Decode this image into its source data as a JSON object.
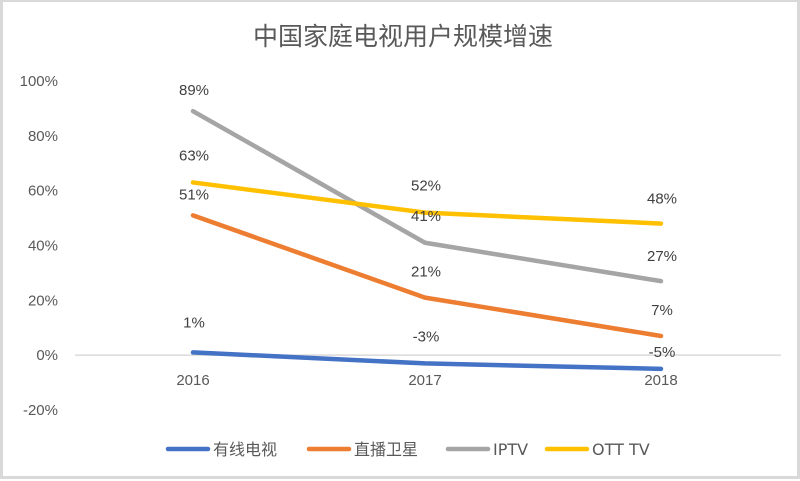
{
  "chart_data": {
    "type": "line",
    "title": "中国家庭电视用户规模增速",
    "xlabel": "",
    "ylabel": "",
    "categories": [
      "2016",
      "2017",
      "2018"
    ],
    "ylim": [
      -0.2,
      1.0
    ],
    "yticks": [
      {
        "value": 1.0,
        "label": "100%"
      },
      {
        "value": 0.8,
        "label": "80%"
      },
      {
        "value": 0.6,
        "label": "60%"
      },
      {
        "value": 0.4,
        "label": "40%"
      },
      {
        "value": 0.2,
        "label": "20%"
      },
      {
        "value": 0.0,
        "label": "0%"
      },
      {
        "value": -0.2,
        "label": "-20%"
      }
    ],
    "grid": false,
    "legend_position": "bottom",
    "series": [
      {
        "name": "有线电视",
        "color": "#4472c4",
        "values": [
          0.01,
          -0.03,
          -0.05
        ],
        "labels": [
          "1%",
          "-3%",
          "-5%"
        ]
      },
      {
        "name": "直播卫星",
        "color": "#ed7d31",
        "values": [
          0.51,
          0.21,
          0.07
        ],
        "labels": [
          "51%",
          "21%",
          "7%"
        ]
      },
      {
        "name": "IPTV",
        "color": "#a5a5a5",
        "values": [
          0.89,
          0.41,
          0.27
        ],
        "labels": [
          "89%",
          "41%",
          "27%"
        ]
      },
      {
        "name": "OTT TV",
        "color": "#ffc000",
        "values": [
          0.63,
          0.52,
          0.48
        ],
        "labels": [
          "63%",
          "52%",
          "48%"
        ]
      }
    ]
  }
}
